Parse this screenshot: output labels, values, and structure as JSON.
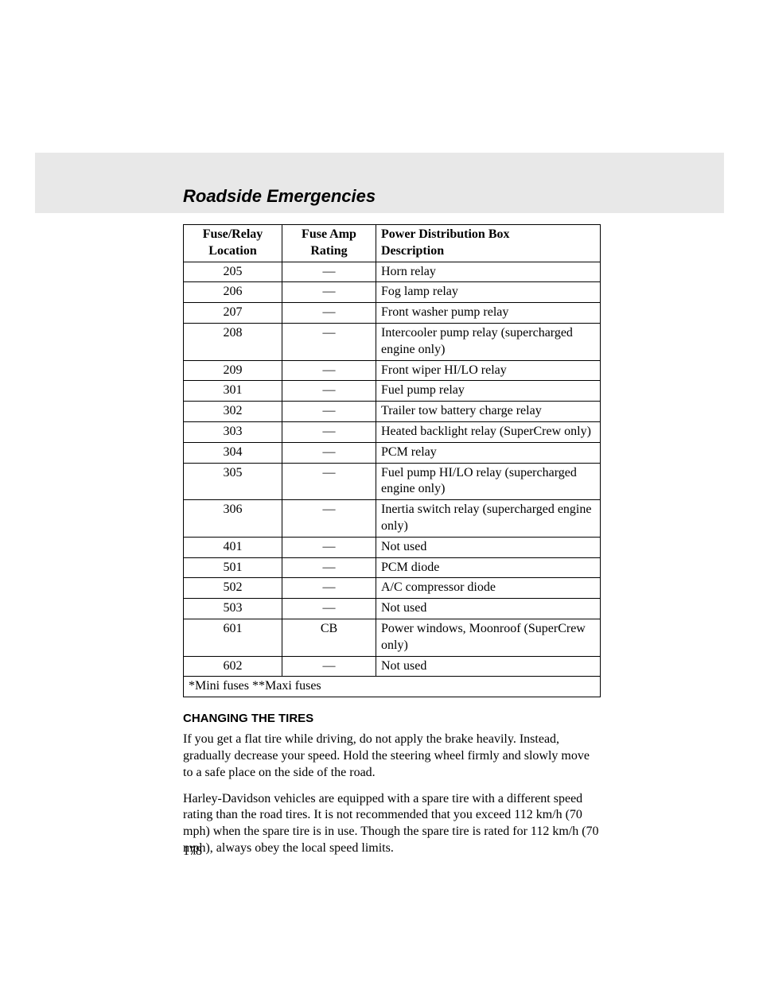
{
  "header": {
    "title": "Roadside Emergencies"
  },
  "table": {
    "columns": [
      {
        "line1": "Fuse/Relay",
        "line2": "Location"
      },
      {
        "line1": "Fuse Amp",
        "line2": "Rating"
      },
      {
        "line1": "Power Distribution Box",
        "line2": "Description"
      }
    ],
    "rows": [
      {
        "loc": "205",
        "amp": "—",
        "desc": "Horn relay"
      },
      {
        "loc": "206",
        "amp": "—",
        "desc": "Fog lamp relay"
      },
      {
        "loc": "207",
        "amp": "—",
        "desc": "Front washer pump relay"
      },
      {
        "loc": "208",
        "amp": "—",
        "desc": "Intercooler pump relay (supercharged engine only)"
      },
      {
        "loc": "209",
        "amp": "—",
        "desc": "Front wiper HI/LO relay"
      },
      {
        "loc": "301",
        "amp": "—",
        "desc": "Fuel pump relay"
      },
      {
        "loc": "302",
        "amp": "—",
        "desc": "Trailer tow battery charge relay"
      },
      {
        "loc": "303",
        "amp": "—",
        "desc": "Heated backlight relay (SuperCrew only)"
      },
      {
        "loc": "304",
        "amp": "—",
        "desc": "PCM relay"
      },
      {
        "loc": "305",
        "amp": "—",
        "desc": "Fuel pump HI/LO relay (supercharged engine only)"
      },
      {
        "loc": "306",
        "amp": "—",
        "desc": "Inertia switch relay (supercharged engine only)"
      },
      {
        "loc": "401",
        "amp": "—",
        "desc": "Not used"
      },
      {
        "loc": "501",
        "amp": "—",
        "desc": "PCM diode"
      },
      {
        "loc": "502",
        "amp": "—",
        "desc": "A/C compressor diode"
      },
      {
        "loc": "503",
        "amp": "—",
        "desc": "Not used"
      },
      {
        "loc": "601",
        "amp": "CB",
        "desc": "Power windows, Moonroof (SuperCrew only)"
      },
      {
        "loc": "602",
        "amp": "—",
        "desc": "Not used"
      }
    ],
    "footnote": "*Mini fuses **Maxi fuses"
  },
  "section": {
    "heading": "CHANGING THE TIRES",
    "para1": "If you get a flat tire while driving, do not apply the brake heavily. Instead, gradually decrease your speed. Hold the steering wheel firmly and slowly move to a safe place on the side of the road.",
    "para2": "Harley-Davidson vehicles are equipped with a spare tire with a different speed rating than the road tires. It is not recommended that you exceed 112 km/h (70 mph) when the spare tire is in use. Though the spare tire is rated for 112 km/h (70 mph), always obey the local speed limits."
  },
  "page_number": "178"
}
